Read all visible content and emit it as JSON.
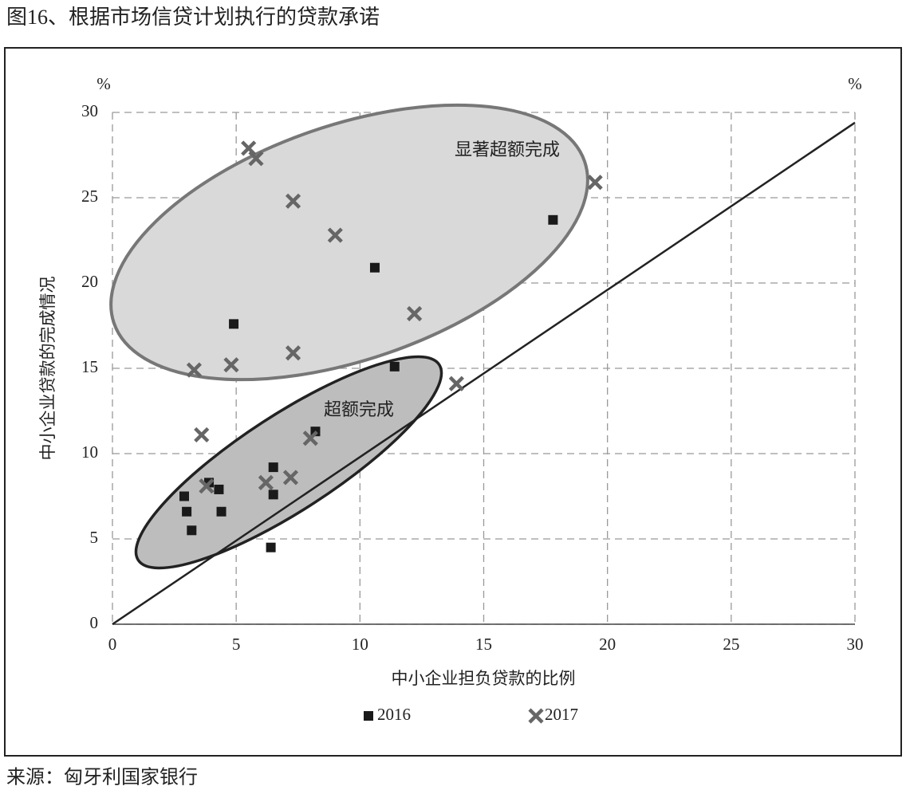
{
  "title": "图16、根据市场信贷计划执行的贷款承诺",
  "source": "来源：匈牙利国家银行",
  "chart_data": {
    "type": "scatter",
    "x_label": "中小企业担负贷款的比例",
    "y_label": "中小企业贷款的完成情况",
    "y_unit": "%",
    "y2_unit": "%",
    "xlim": [
      0,
      30
    ],
    "ylim": [
      0,
      30
    ],
    "xticks": [
      0,
      5,
      10,
      15,
      20,
      25,
      30
    ],
    "yticks": [
      0,
      5,
      10,
      15,
      20,
      25,
      30
    ],
    "grid": true,
    "reference_line": {
      "x": [
        0,
        30
      ],
      "y": [
        0,
        29.4
      ]
    },
    "annotations": [
      "显著超额完成",
      "超额完成"
    ],
    "series": [
      {
        "name": "2016",
        "color": "#1a1a1a",
        "marker": "square",
        "x": [
          17.8,
          10.6,
          4.9,
          11.4,
          8.2,
          6.5,
          6.5,
          3.9,
          4.3,
          2.9,
          3.0,
          4.4,
          3.2,
          6.4
        ],
        "values": [
          23.7,
          20.9,
          17.6,
          15.1,
          11.3,
          9.2,
          7.6,
          8.3,
          7.9,
          7.5,
          6.6,
          6.6,
          5.5,
          4.5
        ]
      },
      {
        "name": "2017",
        "color": "#666666",
        "marker": "x",
        "x": [
          5.5,
          5.8,
          19.5,
          7.3,
          9.0,
          12.2,
          7.3,
          3.3,
          4.8,
          13.9,
          3.6,
          8.0,
          6.2,
          7.2,
          3.8
        ],
        "values": [
          27.9,
          27.3,
          25.9,
          24.8,
          22.8,
          18.2,
          15.9,
          14.9,
          15.2,
          14.1,
          11.1,
          10.9,
          8.3,
          8.6,
          8.1
        ]
      }
    ]
  }
}
